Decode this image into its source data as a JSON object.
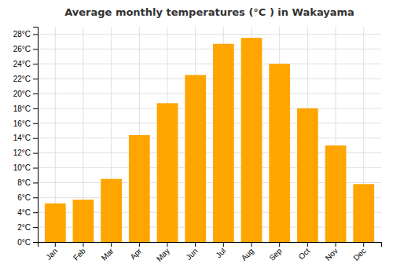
{
  "chart_data": {
    "type": "bar",
    "title": "Average monthly temperatures (°C ) in Wakayama",
    "categories": [
      "Jan",
      "Feb",
      "Mar",
      "Apr",
      "May",
      "Jun",
      "Jul",
      "Aug",
      "Sep",
      "Oct",
      "Nov",
      "Dec"
    ],
    "values": [
      5.2,
      5.7,
      8.5,
      14.4,
      18.7,
      22.5,
      26.7,
      27.5,
      24.0,
      18.0,
      13.0,
      7.8
    ],
    "color": "#FFA500",
    "ylim": [
      0,
      29
    ],
    "yticks": [
      {
        "value": 0,
        "label": "0°C"
      },
      {
        "value": 2,
        "label": "2°C"
      },
      {
        "value": 4,
        "label": "4°C"
      },
      {
        "value": 6,
        "label": "6°C"
      },
      {
        "value": 8,
        "label": "8°C"
      },
      {
        "value": 10,
        "label": "10°C"
      },
      {
        "value": 12,
        "label": "12°C"
      },
      {
        "value": 14,
        "label": "14°C"
      },
      {
        "value": 16,
        "label": "16°C"
      },
      {
        "value": 18,
        "label": "18°C"
      },
      {
        "value": 20,
        "label": "20°C"
      },
      {
        "value": 22,
        "label": "22°C"
      },
      {
        "value": 24,
        "label": "24°C"
      },
      {
        "value": 26,
        "label": "26°C"
      },
      {
        "value": 28,
        "label": "28°C"
      }
    ],
    "grid": true
  }
}
